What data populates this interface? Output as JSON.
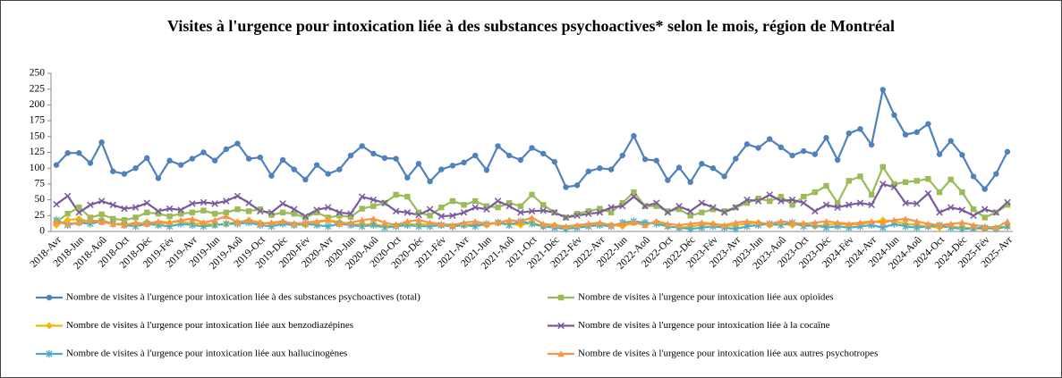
{
  "chart_data": {
    "type": "line",
    "title": "Visites à l'urgence pour intoxication liée à des substances psychoactives* selon le mois, région de Montréal",
    "categories": [
      "2018-Avr",
      null,
      "2018-Jun",
      null,
      "2018-Aoû",
      null,
      "2018-Oct",
      null,
      "2018-Déc",
      null,
      "2019-Fév",
      null,
      "2019-Avr",
      null,
      "2019-Jun",
      null,
      "2019-Aoû",
      null,
      "2019-Oct",
      null,
      "2019-Déc",
      null,
      "2020-Fév",
      null,
      "2020-Avr",
      null,
      "2020-Jun",
      null,
      "2020-Aoû",
      null,
      "2020-Oct",
      null,
      "2020-Déc",
      null,
      "2021-Fév",
      null,
      "2021-Avr",
      null,
      "2021-Jun",
      null,
      "2021-Aoû",
      null,
      "2021-Oct",
      null,
      "2021-Déc",
      null,
      "2022-Fév",
      null,
      "2022-Avr",
      null,
      "2022-Jun",
      null,
      "2022-Aoû",
      null,
      "2022-Oct",
      null,
      "2022-Déc",
      null,
      "2023-Fév",
      null,
      "2023-Avr",
      null,
      "2023-Jun",
      null,
      "2023-Aoû",
      null,
      "2023-Oct",
      null,
      "2023-Déc",
      null,
      "2024-Fév",
      null,
      "2024-Avr",
      null,
      "2024-Jun",
      null,
      "2024-Aoû",
      null,
      "2024-Oct",
      null,
      "2024-Déc",
      null,
      "2025-Fév",
      null,
      "2025-Avr"
    ],
    "ylim": [
      0,
      250
    ],
    "yticks": [
      0,
      25,
      50,
      75,
      100,
      125,
      150,
      175,
      200,
      225,
      250
    ],
    "series": [
      {
        "name": "Nombre de visites à l'urgence pour intoxication liée à des substances psychoactives (total)",
        "color": "#4f81bd",
        "marker": "circle",
        "values": [
          105,
          124,
          124,
          108,
          141,
          95,
          91,
          100,
          116,
          84,
          112,
          105,
          115,
          125,
          112,
          130,
          139,
          115,
          117,
          88,
          113,
          98,
          82,
          105,
          91,
          98,
          120,
          135,
          123,
          116,
          115,
          85,
          107,
          79,
          98,
          104,
          109,
          120,
          97,
          135,
          120,
          113,
          132,
          123,
          110,
          70,
          73,
          95,
          100,
          98,
          120,
          151,
          114,
          112,
          81,
          101,
          78,
          107,
          100,
          87,
          115,
          138,
          132,
          146,
          133,
          120,
          127,
          122,
          148,
          113,
          155,
          162,
          137,
          224,
          184,
          153,
          157,
          170,
          122,
          143,
          121,
          87,
          67,
          91,
          126
        ]
      },
      {
        "name": "Nombre de visites à l'urgence pour intoxication liée aux opioïdes",
        "color": "#9bbb59",
        "marker": "square",
        "values": [
          15,
          28,
          38,
          22,
          27,
          20,
          18,
          22,
          30,
          28,
          24,
          28,
          30,
          33,
          28,
          30,
          35,
          32,
          35,
          26,
          30,
          28,
          22,
          30,
          22,
          25,
          23,
          36,
          40,
          45,
          58,
          55,
          30,
          25,
          38,
          48,
          42,
          48,
          40,
          38,
          45,
          40,
          58,
          42,
          30,
          22,
          28,
          32,
          36,
          30,
          45,
          62,
          40,
          40,
          32,
          35,
          25,
          30,
          35,
          32,
          38,
          45,
          52,
          48,
          55,
          42,
          55,
          62,
          72,
          45,
          80,
          87,
          58,
          102,
          75,
          78,
          80,
          83,
          62,
          82,
          62,
          35,
          22,
          30,
          42
        ]
      },
      {
        "name": "Nombre de visites à l'urgence pour intoxication liée aux benzodiazépines",
        "color": "#f5b800",
        "marker": "diamond",
        "values": [
          10,
          18,
          20,
          15,
          18,
          12,
          12,
          10,
          15,
          12,
          14,
          16,
          12,
          13,
          10,
          12,
          15,
          18,
          14,
          12,
          15,
          12,
          10,
          14,
          18,
          15,
          12,
          10,
          12,
          8,
          10,
          12,
          10,
          12,
          10,
          8,
          10,
          12,
          10,
          14,
          12,
          10,
          14,
          8,
          10,
          6,
          8,
          10,
          12,
          10,
          8,
          14,
          10,
          15,
          8,
          6,
          8,
          10,
          12,
          8,
          10,
          12,
          14,
          10,
          12,
          10,
          12,
          8,
          10,
          12,
          10,
          12,
          14,
          18,
          16,
          12,
          10,
          8,
          6,
          8,
          6,
          5,
          4,
          6,
          8
        ]
      },
      {
        "name": "Nombre de visites à l'urgence pour intoxication liée à la cocaïne",
        "color": "#7a5a9e",
        "marker": "x",
        "values": [
          43,
          56,
          30,
          42,
          48,
          42,
          36,
          38,
          45,
          32,
          36,
          34,
          44,
          46,
          44,
          48,
          56,
          45,
          32,
          30,
          44,
          35,
          24,
          34,
          38,
          30,
          28,
          55,
          50,
          45,
          32,
          30,
          26,
          35,
          24,
          25,
          30,
          38,
          35,
          48,
          40,
          30,
          32,
          33,
          30,
          22,
          25,
          28,
          30,
          38,
          40,
          55,
          40,
          45,
          30,
          40,
          32,
          45,
          38,
          30,
          38,
          50,
          48,
          58,
          48,
          50,
          45,
          32,
          42,
          38,
          42,
          45,
          42,
          75,
          70,
          45,
          44,
          60,
          30,
          38,
          34,
          25,
          35,
          30,
          46
        ]
      },
      {
        "name": "Nombre de visites à l'urgence pour intoxication liée aux hallucinogènes",
        "color": "#4bacc6",
        "marker": "star",
        "values": [
          18,
          10,
          14,
          12,
          16,
          12,
          10,
          8,
          12,
          10,
          8,
          12,
          10,
          8,
          10,
          12,
          12,
          14,
          10,
          8,
          12,
          10,
          12,
          10,
          8,
          12,
          10,
          8,
          10,
          6,
          8,
          10,
          8,
          8,
          10,
          8,
          10,
          8,
          12,
          14,
          10,
          16,
          12,
          8,
          6,
          4,
          6,
          8,
          10,
          8,
          14,
          16,
          14,
          12,
          8,
          6,
          4,
          6,
          8,
          6,
          4,
          8,
          10,
          12,
          10,
          14,
          8,
          10,
          6,
          8,
          6,
          8,
          10,
          6,
          12,
          8,
          6,
          8,
          10,
          6,
          4,
          5,
          6,
          4,
          8
        ]
      },
      {
        "name": "Nombre de visites à l'urgence pour intoxication liée aux autres psychotropes",
        "color": "#f79646",
        "marker": "triangle",
        "values": [
          15,
          12,
          14,
          18,
          15,
          12,
          10,
          14,
          12,
          16,
          14,
          18,
          20,
          14,
          18,
          24,
          14,
          18,
          12,
          14,
          16,
          12,
          14,
          16,
          18,
          12,
          14,
          18,
          20,
          14,
          10,
          16,
          18,
          14,
          12,
          10,
          14,
          16,
          12,
          14,
          18,
          16,
          22,
          12,
          10,
          8,
          10,
          12,
          14,
          10,
          12,
          14,
          10,
          16,
          12,
          10,
          12,
          14,
          12,
          10,
          14,
          16,
          14,
          12,
          16,
          14,
          12,
          14,
          16,
          14,
          12,
          14,
          16,
          14,
          18,
          20,
          16,
          12,
          10,
          12,
          14,
          10,
          8,
          6,
          16
        ]
      }
    ]
  }
}
